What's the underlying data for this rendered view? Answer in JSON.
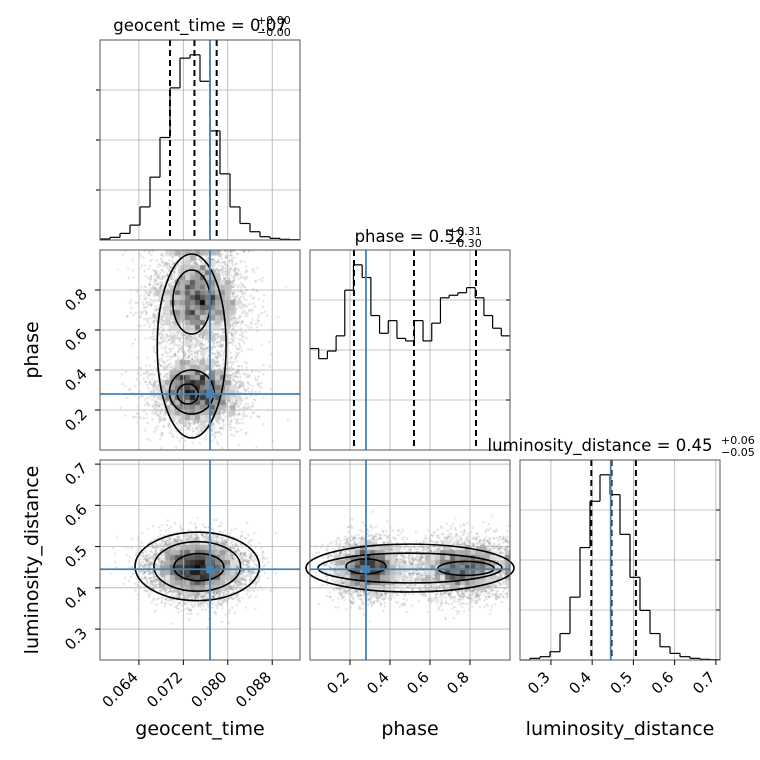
{
  "chart_data": {
    "type": "corner",
    "parameters": [
      "geocent_time",
      "phase",
      "luminosity_distance"
    ],
    "titles": [
      {
        "param": "geocent_time",
        "prefix": "geocent_time = ",
        "median": "0.07",
        "plus": "+0.00",
        "minus": "−0.00"
      },
      {
        "param": "phase",
        "prefix": "phase = ",
        "median": "0.52",
        "plus": "+0.31",
        "minus": "−0.30"
      },
      {
        "param": "luminosity_distance",
        "prefix": "luminosity_distance = ",
        "median": "0.45",
        "plus": "+0.06",
        "minus": "−0.05"
      }
    ],
    "axis_labels": [
      "geocent_time",
      "phase",
      "luminosity_distance"
    ],
    "ranges": [
      [
        0.057,
        0.093
      ],
      [
        0.0,
        1.0
      ],
      [
        0.225,
        0.71
      ]
    ],
    "ticks": [
      {
        "values": [
          0.064,
          0.072,
          0.08,
          0.088
        ],
        "labels": [
          "0.064",
          "0.072",
          "0.080",
          "0.088"
        ]
      },
      {
        "values": [
          0.2,
          0.4,
          0.6,
          0.8
        ],
        "labels": [
          "0.2",
          "0.4",
          "0.6",
          "0.8"
        ]
      },
      {
        "values": [
          0.3,
          0.4,
          0.5,
          0.6,
          0.7
        ],
        "labels": [
          "0.3",
          "0.4",
          "0.5",
          "0.6",
          "0.7"
        ]
      }
    ],
    "truths": [
      0.0768,
      0.28,
      0.445
    ],
    "quantiles": [
      [
        0.0696,
        0.074,
        0.078
      ],
      [
        0.22,
        0.52,
        0.83
      ],
      [
        0.398,
        0.447,
        0.506
      ]
    ],
    "histograms": [
      {
        "bin_edges_range": [
          0.057,
          0.093
        ],
        "counts": [
          0.3,
          0.8,
          2,
          4.5,
          10,
          19,
          31,
          46,
          55,
          56,
          48,
          33,
          20,
          10,
          5,
          2.5,
          1,
          0.5,
          0.2,
          0.1
        ]
      },
      {
        "bin_edges_range": [
          0.0,
          1.0
        ],
        "counts": [
          0.4,
          0.36,
          0.39,
          0.45,
          0.63,
          0.73,
          0.68,
          0.53,
          0.46,
          0.51,
          0.44,
          0.43,
          0.51,
          0.43,
          0.5,
          0.6,
          0.61,
          0.62,
          0.64,
          0.6,
          0.53,
          0.48,
          0.45
        ]
      },
      {
        "bin_edges_range": [
          0.225,
          0.71
        ],
        "counts": [
          0,
          0.5,
          1,
          2.5,
          8,
          19,
          34,
          48,
          56,
          50,
          38,
          25,
          15,
          8,
          4,
          2,
          1,
          0.5,
          0.2,
          0.1
        ]
      }
    ],
    "grid": true,
    "colors": {
      "truth": "#4682b4",
      "hist": "#000000",
      "grid": "#b0b0b0"
    }
  }
}
